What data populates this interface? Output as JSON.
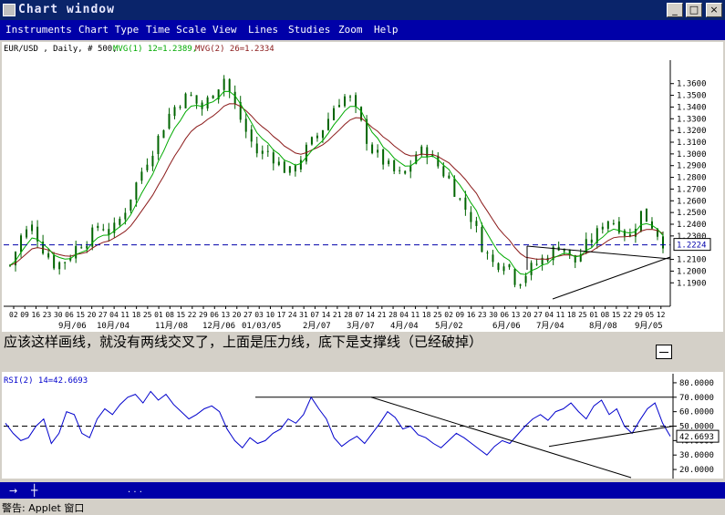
{
  "window": {
    "title": "Chart window"
  },
  "menu": [
    "Instruments",
    "Chart Type",
    "Time Scale",
    "View",
    "Lines",
    "Studies",
    "Zoom",
    "Help"
  ],
  "chart_header": {
    "symbol": "EUR/USD , Daily, # 500,",
    "ma1": "MVG(1) 12=1.2389,",
    "ma2": "MVG(2) 26=1.2334"
  },
  "colors": {
    "candle": "#006400",
    "ma1": "#00aa00",
    "ma2": "#8b1a1a",
    "rsi": "#0000cc",
    "support": "#0000aa",
    "menubar": "#0000a8"
  },
  "chart_data": [
    {
      "type": "candlestick",
      "ylim": [
        1.17,
        1.38
      ],
      "y_ticks": [
        "1.3600",
        "1.3500",
        "1.3400",
        "1.3300",
        "1.3200",
        "1.3100",
        "1.3000",
        "1.2900",
        "1.2800",
        "1.2700",
        "1.2600",
        "1.2500",
        "1.2400",
        "1.2300",
        "1.2100",
        "1.2000",
        "1.1900"
      ],
      "current_value": "1.2224",
      "reference_line": 1.2224,
      "x_day_labels": [
        "02",
        "09",
        "16",
        "23",
        "30",
        "06",
        "15",
        "20",
        "27",
        "04",
        "11",
        "18",
        "25",
        "01",
        "08",
        "15",
        "22",
        "29",
        "06",
        "13",
        "20",
        "27",
        "03",
        "10",
        "17",
        "24",
        "31",
        "07",
        "14",
        "21",
        "28",
        "07",
        "14",
        "21",
        "28",
        "04",
        "11",
        "18",
        "25",
        "02",
        "09",
        "16",
        "23",
        "30",
        "06",
        "13",
        "20",
        "27",
        "04",
        "11",
        "18",
        "25",
        "01",
        "08",
        "15",
        "22",
        "29",
        "05",
        "12"
      ],
      "x_month_labels": [
        "9月/06",
        "10月/04",
        "11月/08",
        "12月/06",
        "01/03/05",
        "2月/07",
        "3月/07",
        "4月/04",
        "5月/02",
        "6月/06",
        "7月/04",
        "8月/08",
        "9月/05"
      ],
      "close_path": [
        1.205,
        1.23,
        1.238,
        1.218,
        1.205,
        1.21,
        1.222,
        1.228,
        1.24,
        1.232,
        1.248,
        1.27,
        1.292,
        1.31,
        1.332,
        1.345,
        1.35,
        1.338,
        1.352,
        1.365,
        1.34,
        1.318,
        1.3,
        1.302,
        1.29,
        1.283,
        1.3,
        1.312,
        1.325,
        1.345,
        1.35,
        1.33,
        1.305,
        1.295,
        1.285,
        1.28,
        1.3,
        1.303,
        1.29,
        1.278,
        1.26,
        1.245,
        1.22,
        1.205,
        1.21,
        1.19,
        1.2,
        1.208,
        1.215,
        1.225,
        1.205,
        1.22,
        1.23,
        1.245,
        1.24,
        1.228,
        1.25,
        1.24,
        1.225
      ]
    },
    {
      "type": "line",
      "name": "RSI(2) 14=42.6693",
      "ylim": [
        15,
        85
      ],
      "y_ticks": [
        "80.0000",
        "70.0000",
        "60.0000",
        "50.0000",
        "40.0000",
        "30.0000",
        "20.0000"
      ],
      "current_value": "42.6693",
      "reference_lines": [
        70,
        50
      ],
      "values": [
        52,
        45,
        40,
        42,
        50,
        55,
        38,
        45,
        60,
        58,
        45,
        42,
        55,
        62,
        58,
        65,
        70,
        72,
        66,
        74,
        68,
        72,
        65,
        60,
        55,
        58,
        62,
        64,
        60,
        48,
        40,
        35,
        42,
        38,
        40,
        45,
        48,
        55,
        52,
        58,
        70,
        62,
        55,
        42,
        36,
        40,
        43,
        38,
        45,
        52,
        60,
        56,
        48,
        50,
        44,
        42,
        38,
        35,
        40,
        45,
        42,
        38,
        34,
        30,
        36,
        40,
        38,
        44,
        50,
        55,
        58,
        54,
        60,
        62,
        66,
        60,
        55,
        64,
        68,
        58,
        62,
        50,
        45,
        54,
        62,
        66,
        52,
        43
      ]
    }
  ],
  "note_text": "应该这样画线，就没有两线交叉了，上面是压力线，底下是支撑线（已经破掉）",
  "status_dots": ". . .",
  "applet_warning": "警告: Applet 窗口"
}
